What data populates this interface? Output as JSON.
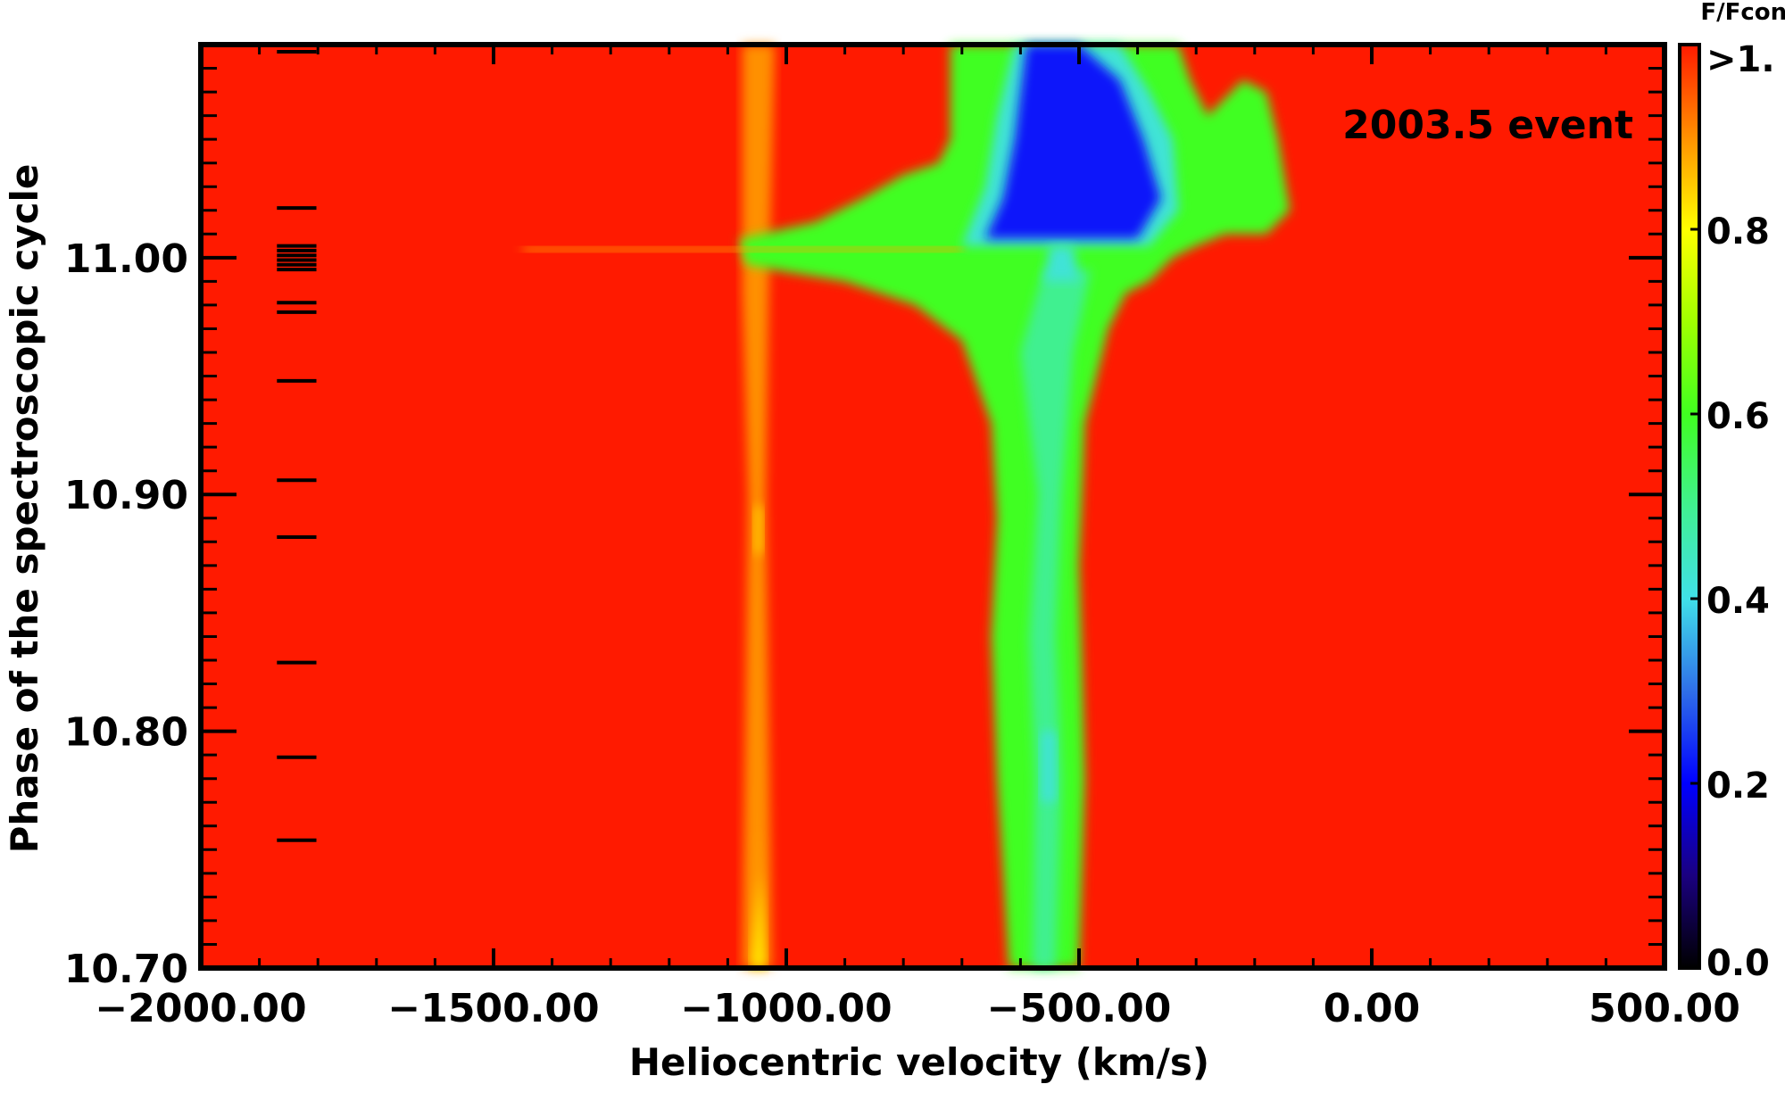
{
  "chart_data": {
    "type": "heatmap",
    "title": "",
    "annotation": "2003.5 event",
    "xlabel": "Heliocentric velocity (km/s)",
    "ylabel": "Phase of the spectroscopic cycle",
    "xlim": [
      -2000,
      500
    ],
    "ylim": [
      10.7,
      11.09
    ],
    "x_ticks": [
      -2000,
      -1500,
      -1000,
      -500,
      0,
      500
    ],
    "x_tick_labels": [
      "−2000.00",
      "−1500.00",
      "−1000.00",
      "−500.00",
      "0.00",
      "500.00"
    ],
    "y_ticks": [
      10.7,
      10.8,
      10.9,
      11.0
    ],
    "y_tick_labels": [
      "10.70",
      "10.80",
      "10.90",
      "11.00"
    ],
    "colorbar": {
      "title": "F/Fcont",
      "range": [
        0.0,
        1.0
      ],
      "ticks": [
        0.0,
        0.2,
        0.4,
        0.6,
        0.8,
        1.0
      ],
      "tick_labels": [
        "0.0",
        "0.2",
        "0.4",
        "0.6",
        "0.8",
        ">1."
      ],
      "colormap": [
        {
          "v": 0.0,
          "color": "#000000"
        },
        {
          "v": 0.1,
          "color": "#1a0080"
        },
        {
          "v": 0.2,
          "color": "#0000ff"
        },
        {
          "v": 0.3,
          "color": "#2f6fe8"
        },
        {
          "v": 0.4,
          "color": "#40e0e8"
        },
        {
          "v": 0.5,
          "color": "#40f090"
        },
        {
          "v": 0.6,
          "color": "#40ff20"
        },
        {
          "v": 0.7,
          "color": "#a0ff00"
        },
        {
          "v": 0.8,
          "color": "#ffff00"
        },
        {
          "v": 0.9,
          "color": "#ff9000"
        },
        {
          "v": 1.0,
          "color": "#ff1a00"
        }
      ]
    },
    "observation_phases": [
      11.087,
      11.021,
      11.005,
      11.003,
      11.001,
      10.999,
      10.997,
      10.995,
      10.981,
      10.977,
      10.948,
      10.906,
      10.882,
      10.829,
      10.789,
      10.754
    ],
    "features": [
      {
        "name": "weak absorption near -1050 km/s",
        "center": -1050,
        "min_flux": 0.85
      },
      {
        "name": "main absorption trough near -520 km/s",
        "center": -520,
        "min_flux": 0.45
      },
      {
        "name": "deep absorption after phase 11.0",
        "velocity_range": [
          -700,
          -330
        ],
        "min_flux": 0.12
      }
    ]
  }
}
